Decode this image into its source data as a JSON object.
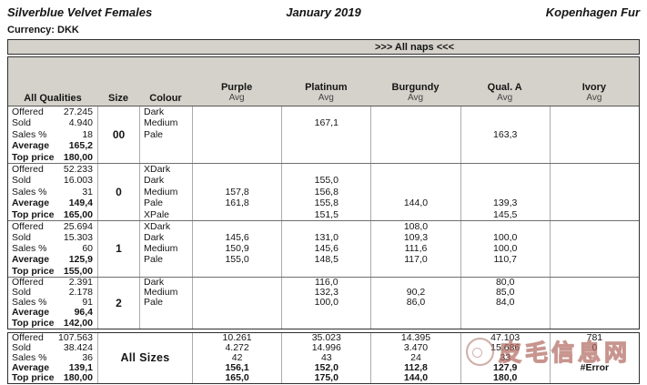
{
  "header": {
    "title": "Silverblue Velvet Females",
    "date": "January 2019",
    "house": "Kopenhagen Fur",
    "currency_label": "Currency: DKK",
    "naps_banner": ">>> All naps <<<"
  },
  "table": {
    "corner_header": "All Qualities",
    "size_header": "Size",
    "colour_header": "Colour",
    "stat_labels": [
      "Offered",
      "Sold",
      "Sales %",
      "Average",
      "Top price"
    ],
    "columns": [
      {
        "name": "Purple",
        "sub": "Avg"
      },
      {
        "name": "Platinum",
        "sub": "Avg"
      },
      {
        "name": "Burgundy",
        "sub": "Avg"
      },
      {
        "name": "Qual. A",
        "sub": "Avg"
      },
      {
        "name": "Ivory",
        "sub": "Avg"
      }
    ],
    "groups": [
      {
        "size": "00",
        "stats": [
          "27.245",
          "4.940",
          "18",
          "165,2",
          "180,00"
        ],
        "colours": [
          "Dark",
          "Medium",
          "Pale"
        ],
        "col_values": [
          [
            "",
            "",
            ""
          ],
          [
            "",
            "167,1",
            ""
          ],
          [
            "",
            "",
            ""
          ],
          [
            "",
            "",
            "163,3"
          ],
          [
            "",
            "",
            ""
          ]
        ]
      },
      {
        "size": "0",
        "stats": [
          "52.233",
          "16.003",
          "31",
          "149,4",
          "165,00"
        ],
        "colours": [
          "XDark",
          "Dark",
          "Medium",
          "Pale",
          "XPale"
        ],
        "col_values": [
          [
            "",
            "",
            "157,8",
            "161,8",
            ""
          ],
          [
            "",
            "155,0",
            "156,8",
            "155,8",
            "151,5"
          ],
          [
            "",
            "",
            "",
            "144,0",
            ""
          ],
          [
            "",
            "",
            "",
            "139,3",
            "145,5"
          ],
          [
            "",
            "",
            "",
            "",
            ""
          ]
        ]
      },
      {
        "size": "1",
        "stats": [
          "25.694",
          "15.303",
          "60",
          "125,9",
          "155,00"
        ],
        "colours": [
          "XDark",
          "Dark",
          "Medium",
          "Pale"
        ],
        "col_values": [
          [
            "",
            "145,6",
            "150,9",
            "155,0"
          ],
          [
            "",
            "131,0",
            "145,6",
            "148,5"
          ],
          [
            "108,0",
            "109,3",
            "111,6",
            "117,0"
          ],
          [
            "",
            "100,0",
            "100,0",
            "110,7"
          ],
          [
            "",
            "",
            "",
            ""
          ]
        ]
      },
      {
        "size": "2",
        "stats": [
          "2.391",
          "2.178",
          "91",
          "96,4",
          "142,00"
        ],
        "colours": [
          "Dark",
          "Medium",
          "Pale"
        ],
        "col_values": [
          [
            "",
            "",
            ""
          ],
          [
            "116,0",
            "132,3",
            "100,0"
          ],
          [
            "",
            "90,2",
            "86,0"
          ],
          [
            "80,0",
            "85,0",
            "84,0"
          ],
          [
            "",
            "",
            ""
          ]
        ]
      },
      {
        "size": "All Sizes",
        "totals": true,
        "stats": [
          "107.563",
          "38.424",
          "36",
          "139,1",
          "180,00"
        ],
        "col_values": [
          [
            "10.261",
            "4.272",
            "42",
            "156,1",
            "165,0"
          ],
          [
            "35.023",
            "14.996",
            "43",
            "152,0",
            "175,0"
          ],
          [
            "14.395",
            "3.470",
            "24",
            "112,8",
            "144,0"
          ],
          [
            "47.103",
            "15.686",
            "33",
            "127,9",
            "180,0"
          ],
          [
            "781",
            "0",
            "",
            "#Error",
            ""
          ]
        ]
      }
    ]
  },
  "watermark": {
    "text": "皮毛信息网"
  }
}
